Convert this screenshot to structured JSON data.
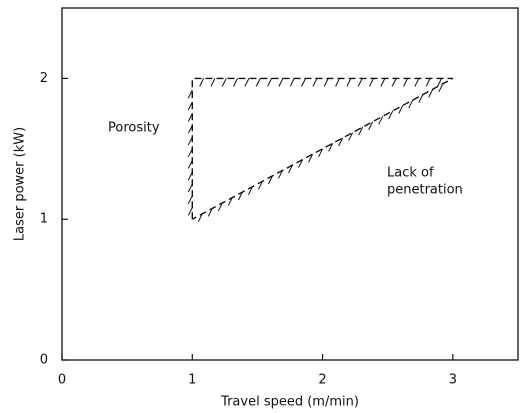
{
  "chart_data": {
    "type": "line",
    "x_label": "Travel speed (m/min)",
    "y_label": "Laser power (kW)",
    "xlim": [
      0,
      3.5
    ],
    "xticks": [
      0,
      1,
      2,
      3
    ],
    "ylim": [
      0,
      2.5
    ],
    "yticks": [
      0,
      1,
      2
    ],
    "series": [
      {
        "color": "#111111",
        "x": [
          1,
          1,
          3,
          1
        ],
        "values": [
          1,
          2,
          2,
          1
        ]
      }
    ],
    "annotations": [
      "Porosity",
      "Lack of",
      "penetration"
    ]
  }
}
